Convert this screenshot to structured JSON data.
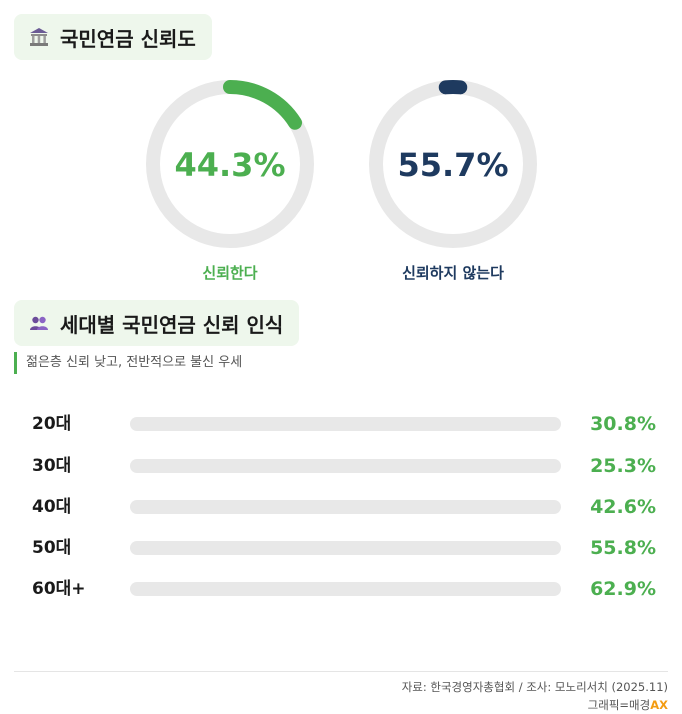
{
  "colors": {
    "trust": "#4caf50",
    "distrust": "#1e3a5f",
    "track": "#e8e8e8",
    "header_bg": "#eef7ec"
  },
  "section1": {
    "title": "국민연금 신뢰도",
    "icon": "bank-icon"
  },
  "section2": {
    "title": "세대별 국민연금 신뢰 인식",
    "icon": "people-icon",
    "subtitle": "젊은층 신뢰 낮고, 전반적으로 불신 우세"
  },
  "chart_data": [
    {
      "type": "pie",
      "labels": [
        "신뢰한다",
        "신뢰하지 않는다"
      ],
      "values": [
        44.3,
        55.7
      ],
      "value_labels": [
        "44.3%",
        "55.7%"
      ],
      "colors": [
        "#4caf50",
        "#1e3a5f"
      ]
    },
    {
      "type": "bar",
      "categories": [
        "20대",
        "30대",
        "40대",
        "50대",
        "60대+"
      ],
      "values": [
        30.8,
        25.3,
        42.6,
        55.8,
        62.9
      ],
      "value_labels": [
        "30.8%",
        "25.3%",
        "42.6%",
        "55.8%",
        "62.9%"
      ]
    }
  ],
  "footer": {
    "source": "자료: 한국경영자총협회 / 조사: 모노리서치 (2025.11)",
    "credit_prefix": "그래픽=매경",
    "credit_brand": "AX"
  }
}
